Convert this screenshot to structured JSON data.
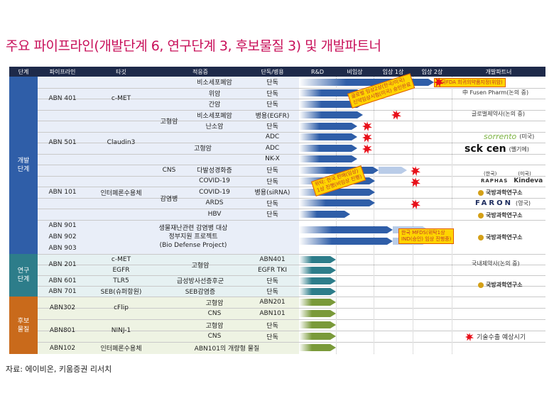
{
  "title": "주요 파이프라인(개발단계 6, 연구단계 3, 후보물질 3) 및 개발파트너",
  "headers": [
    "단계",
    "파이프라인",
    "타깃",
    "적응증",
    "단독/병용",
    "R&D",
    "비임상",
    "임상 1상",
    "임상 2상",
    "개발파트너"
  ],
  "groups": [
    {
      "label": "개발\n단계",
      "color": "#2f5ea8"
    },
    {
      "label": "연구\n단계",
      "color": "#2d7d8a"
    },
    {
      "label": "후보\n물질",
      "color": "#c96a1b"
    }
  ],
  "pipelines": [
    "ABN 401",
    "ABN 501",
    "ABN 101",
    "ABN 901",
    "ABN 902",
    "ABN 903",
    "ABN 201",
    "ABN 601",
    "ABN 701",
    "ABN302",
    "ABN801",
    "ABN102"
  ],
  "targets": [
    "c-MET",
    "Claudin3",
    "인터페론수용체",
    "c-MET",
    "EGFR",
    "TLR5",
    "SEB(슈퍼항원)",
    "cFlip",
    "NINJ-1",
    "인터페론수용체"
  ],
  "cat_labels": [
    "고형암",
    "고형암",
    "CNS",
    "감염병",
    "고형암",
    "급성방사선증후군",
    "SEB감염증"
  ],
  "biodefense": [
    "생물재난관련 감염병 대상",
    "정부지원 프로젝트",
    "(Bio Defense Project)"
  ],
  "indications": [
    "비소세포폐암",
    "위암",
    "간암",
    "비소세포폐암",
    "난소암",
    "",
    "",
    "",
    "다발성경화증",
    "COVID-19",
    "COVID-19",
    "ARDS",
    "HBV"
  ],
  "modes": [
    "단독",
    "단독",
    "단독",
    "병용(EGFR)",
    "단독",
    "ADC",
    "ADC",
    "NK-X",
    "단독",
    "단독",
    "병용(siRNA)",
    "단독",
    "단독",
    "",
    "ABN401",
    "EGFR TKI",
    "단독",
    "단독"
  ],
  "cand_rows": [
    {
      "ind": "고형암",
      "mode": "ABN201"
    },
    {
      "ind": "CNS",
      "mode": "ABN101"
    },
    {
      "ind": "고형암",
      "mode": "단독"
    },
    {
      "ind": "CNS",
      "mode": "단독"
    },
    {
      "ind": "ABN101의 개량형 물질",
      "mode": ""
    }
  ],
  "partners": {
    "p1": "中 Fusen Pharm(논의 중)",
    "p2": "글로벌제약사(논의 중)",
    "sorrento": "sorrento",
    "sorrento_tag": "(미국)",
    "sck": "sck cen",
    "sck_tag": "(벨기에)",
    "raphas_tag1": "(한국)",
    "raphas_tag2": "(미국)",
    "raphas": "RAPHAS",
    "kindeva": "Kindeva",
    "kr1": "국방과학연구소",
    "faron": "FARON",
    "faron_tag": "(영국)",
    "kr2": "국방과학연구소",
    "kr3": "국방과학연구소",
    "p3": "국내제약사(논의 중)",
    "kr4": "국방과학연구소",
    "legend": "기술수출 예상시기"
  },
  "callouts": {
    "c1": "미국FDA 희귀의약품지정(위암)",
    "c2a": "글로벌 임상2상(한국/미국)",
    "c2b": "신약임상시험(미국) 승인완료",
    "c3a": "위탁: 한국 판매(임상)",
    "c3b": "1상 진행(비임상 진행)",
    "c4a": "한국 MFDS(위탁1상",
    "c4b": "IND(승인) 임상 진행중)"
  },
  "source": "자료: 에이비온, 키움증권 리서치",
  "colors": {
    "header": "#1e2a4a",
    "dev": "#2f5ea8",
    "research": "#2d7d8a",
    "candidate": "#c96a1b",
    "star": "#e8101a"
  }
}
